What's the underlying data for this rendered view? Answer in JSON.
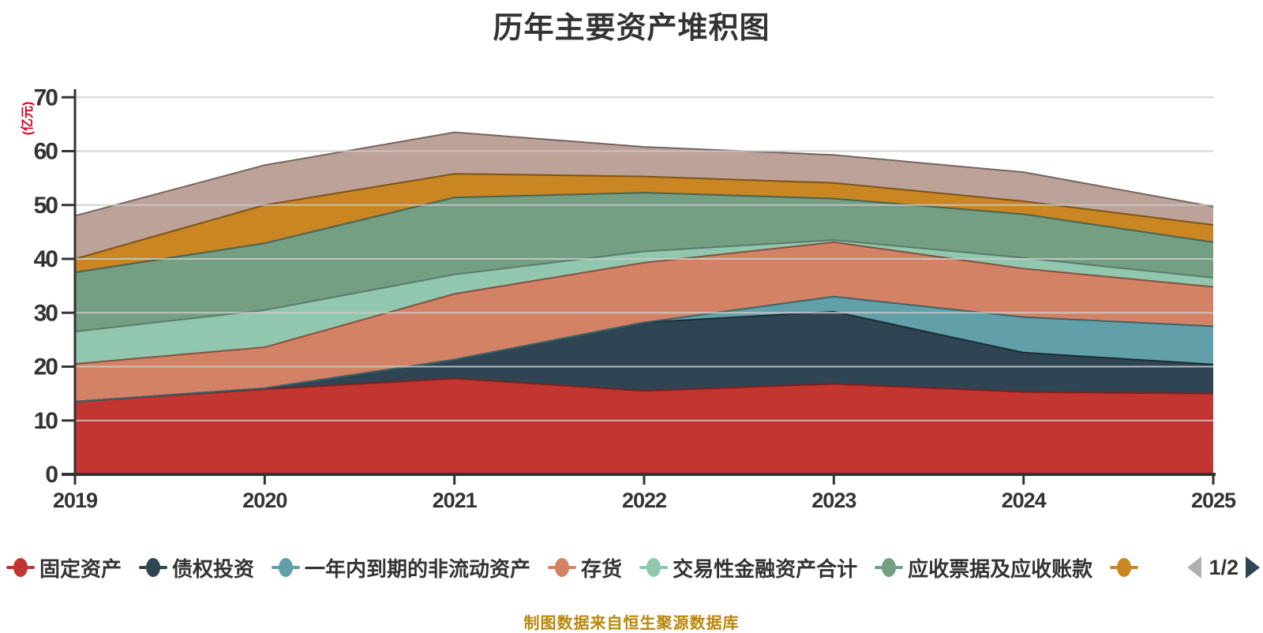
{
  "title": {
    "text": "历年主要资产堆积图"
  },
  "y_axis": {
    "name": "(亿元)",
    "name_color": "#d9001b",
    "ticks": [
      0,
      10,
      20,
      30,
      40,
      50,
      60,
      70
    ],
    "tick_color": "#333333",
    "axis_line_color": "#333333",
    "grid_line_color": "#cccccc"
  },
  "x_axis": {
    "ticks": [
      "2019",
      "2020",
      "2021",
      "2022",
      "2023",
      "2024",
      "2025"
    ],
    "tick_color": "#333333"
  },
  "legend": {
    "items": [
      {
        "label": "固定资产",
        "color": "#c23531"
      },
      {
        "label": "债权投资",
        "color": "#2f4554"
      },
      {
        "label": "一年内到期的非流动资产",
        "color": "#61a0a8"
      },
      {
        "label": "存货",
        "color": "#d48265"
      },
      {
        "label": "交易性金融资产合计",
        "color": "#91c7ae"
      },
      {
        "label": "应收票据及应收账款",
        "color": "#749f83"
      },
      {
        "label": "",
        "color": "#ca8622"
      }
    ],
    "pagination": {
      "text": "1/2",
      "prev_color": "#b0b0b0",
      "next_color": "#2f4554"
    }
  },
  "caption": {
    "text": "制图数据来自恒生聚源数据库",
    "color": "#b8860b"
  },
  "chart_data": {
    "type": "area",
    "stacked": true,
    "x": [
      "2019",
      "2020",
      "2021",
      "2022",
      "2023",
      "2024",
      "2025"
    ],
    "series": [
      {
        "name": "固定资产",
        "color": "#c23531",
        "values": [
          13.5,
          15.8,
          17.8,
          15.5,
          16.8,
          15.3,
          15.0
        ]
      },
      {
        "name": "债权投资",
        "color": "#2f4554",
        "values": [
          0,
          0.2,
          3.5,
          12.7,
          13.4,
          7.3,
          5.4
        ]
      },
      {
        "name": "一年内到期的非流动资产",
        "color": "#61a0a8",
        "values": [
          0,
          0,
          0,
          0,
          2.8,
          6.6,
          7.1
        ]
      },
      {
        "name": "存货",
        "color": "#d48265",
        "values": [
          7.0,
          7.6,
          12.2,
          11.1,
          10.1,
          9.0,
          7.3
        ]
      },
      {
        "name": "交易性金融资产合计",
        "color": "#91c7ae",
        "values": [
          6.0,
          6.9,
          3.6,
          2.1,
          0.4,
          2.0,
          1.7
        ]
      },
      {
        "name": "应收票据及应收账款",
        "color": "#749f83",
        "values": [
          11.0,
          12.4,
          14.3,
          10.9,
          7.7,
          8.1,
          6.6
        ]
      },
      {
        "name": "",
        "color": "#ca8622",
        "values": [
          2.5,
          7.1,
          4.4,
          3.0,
          2.9,
          2.4,
          3.2
        ]
      },
      {
        "name": "",
        "color": "#bda29a",
        "values": [
          8.0,
          7.4,
          7.7,
          5.5,
          5.2,
          5.4,
          3.4
        ]
      }
    ],
    "stack_totals": [
      48.0,
      57.4,
      63.5,
      60.8,
      59.3,
      56.1,
      49.7
    ],
    "title": "历年主要资产堆积图",
    "xlabel": "",
    "ylabel": "(亿元)",
    "ylim": [
      0,
      70
    ],
    "grid": true,
    "legend_position": "bottom"
  }
}
